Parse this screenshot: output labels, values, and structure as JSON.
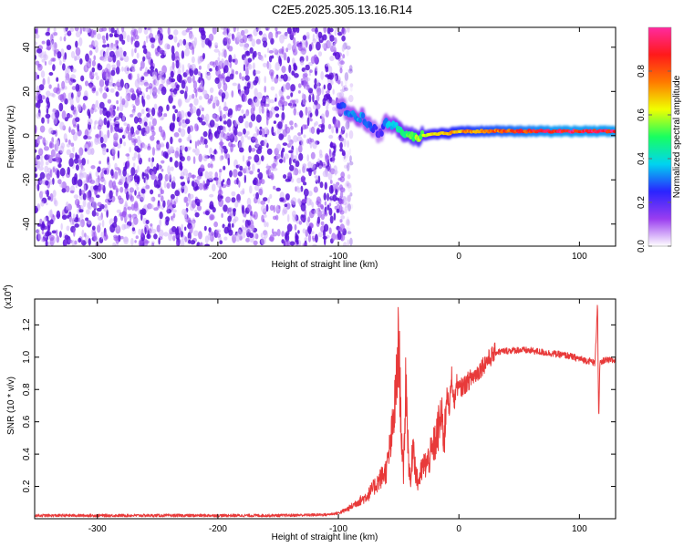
{
  "figure_title": "C2E5.2025.305.13.16.R14",
  "chart_data": [
    {
      "type": "heatmap",
      "title": "C2E5.2025.305.13.16.R14",
      "xlabel": "Height of straight line (km)",
      "ylabel": "Frequency (Hz)",
      "xlim": [
        -352,
        130
      ],
      "ylim": [
        -50,
        49
      ],
      "xticks": [
        -300,
        -200,
        -100,
        0,
        100
      ],
      "xtick_labels": [
        "-300",
        "-200",
        "-100",
        "0",
        "100"
      ],
      "yticks": [
        -40,
        -20,
        0,
        20,
        40
      ],
      "ytick_labels": [
        "-40",
        "-20",
        "0",
        "20",
        "40"
      ],
      "noise_region": {
        "x_range": [
          -352,
          -95
        ],
        "description": "broadband low-amplitude noise"
      },
      "ridge": {
        "x": [
          -100,
          -95,
          -90,
          -85,
          -80,
          -75,
          -70,
          -65,
          -60,
          -55,
          -50,
          -45,
          -40,
          -35,
          -30,
          -20,
          -10,
          0,
          20,
          40,
          60,
          80,
          100,
          120,
          130
        ],
        "freq": [
          14,
          12,
          10,
          9,
          8,
          5,
          3,
          1,
          6,
          5,
          3,
          1,
          0,
          -1,
          0,
          1,
          1,
          2,
          2,
          2,
          2,
          2,
          2,
          2,
          2
        ],
        "amplitude": [
          0.25,
          0.3,
          0.32,
          0.35,
          0.35,
          0.3,
          0.25,
          0.2,
          0.35,
          0.4,
          0.45,
          0.5,
          0.55,
          0.6,
          0.6,
          0.65,
          0.7,
          0.75,
          0.8,
          0.85,
          0.9,
          0.95,
          0.95,
          0.95,
          0.95
        ]
      },
      "colorbar": {
        "label": "Normalized spectral amplitude",
        "range": [
          0,
          1
        ],
        "ticks": [
          0.0,
          0.2,
          0.4,
          0.6,
          0.8
        ],
        "tick_labels": [
          "0.0",
          "0.2",
          "0.4",
          "0.6",
          "0.8"
        ],
        "colors": [
          "#ffffff",
          "#9a3df0",
          "#2a24ff",
          "#00d4f0",
          "#18ff60",
          "#f0ff00",
          "#ff7a00",
          "#ff1a1a",
          "#ff2aa0"
        ]
      }
    },
    {
      "type": "line",
      "xlabel": "Height of straight line (km)",
      "ylabel": "SNR (10 * v/v)",
      "scale_label": "(x10",
      "scale_exponent": "4",
      "xlim": [
        -352,
        130
      ],
      "ylim": [
        0,
        13600
      ],
      "xticks": [
        -300,
        -200,
        -100,
        0,
        100
      ],
      "xtick_labels": [
        "-300",
        "-200",
        "-100",
        "0",
        "100"
      ],
      "yticks": [
        2000,
        4000,
        6000,
        8000,
        10000,
        12000
      ],
      "ytick_labels": [
        "0.2",
        "0.4",
        "0.6",
        "0.8",
        "1.0",
        "1.2"
      ],
      "series": [
        {
          "name": "SNR",
          "color": "#e83a3a",
          "x": [
            -352,
            -300,
            -250,
            -200,
            -150,
            -110,
            -100,
            -95,
            -90,
            -85,
            -80,
            -75,
            -70,
            -65,
            -60,
            -55,
            -52,
            -50,
            -48,
            -46,
            -44,
            -42,
            -40,
            -38,
            -36,
            -34,
            -30,
            -26,
            -22,
            -18,
            -15,
            -12,
            -10,
            -8,
            -6,
            -4,
            -2,
            0,
            5,
            10,
            15,
            20,
            25,
            30,
            40,
            50,
            60,
            70,
            80,
            90,
            100,
            105,
            110,
            113,
            115,
            116,
            117,
            118,
            120,
            125,
            130
          ],
          "y": [
            200,
            200,
            200,
            200,
            200,
            250,
            350,
            500,
            700,
            1000,
            1200,
            1500,
            2000,
            2500,
            3000,
            5500,
            8000,
            11000,
            6000,
            2500,
            9000,
            4000,
            2000,
            5000,
            3000,
            2200,
            3200,
            3500,
            4200,
            5200,
            6300,
            5000,
            8300,
            6500,
            9000,
            7000,
            8400,
            8000,
            8300,
            8700,
            9000,
            9500,
            9900,
            10300,
            10400,
            10450,
            10400,
            10300,
            10200,
            10100,
            9900,
            9800,
            9750,
            9600,
            13500,
            6000,
            9700,
            9600,
            9800,
            9800,
            9800
          ]
        }
      ]
    }
  ]
}
